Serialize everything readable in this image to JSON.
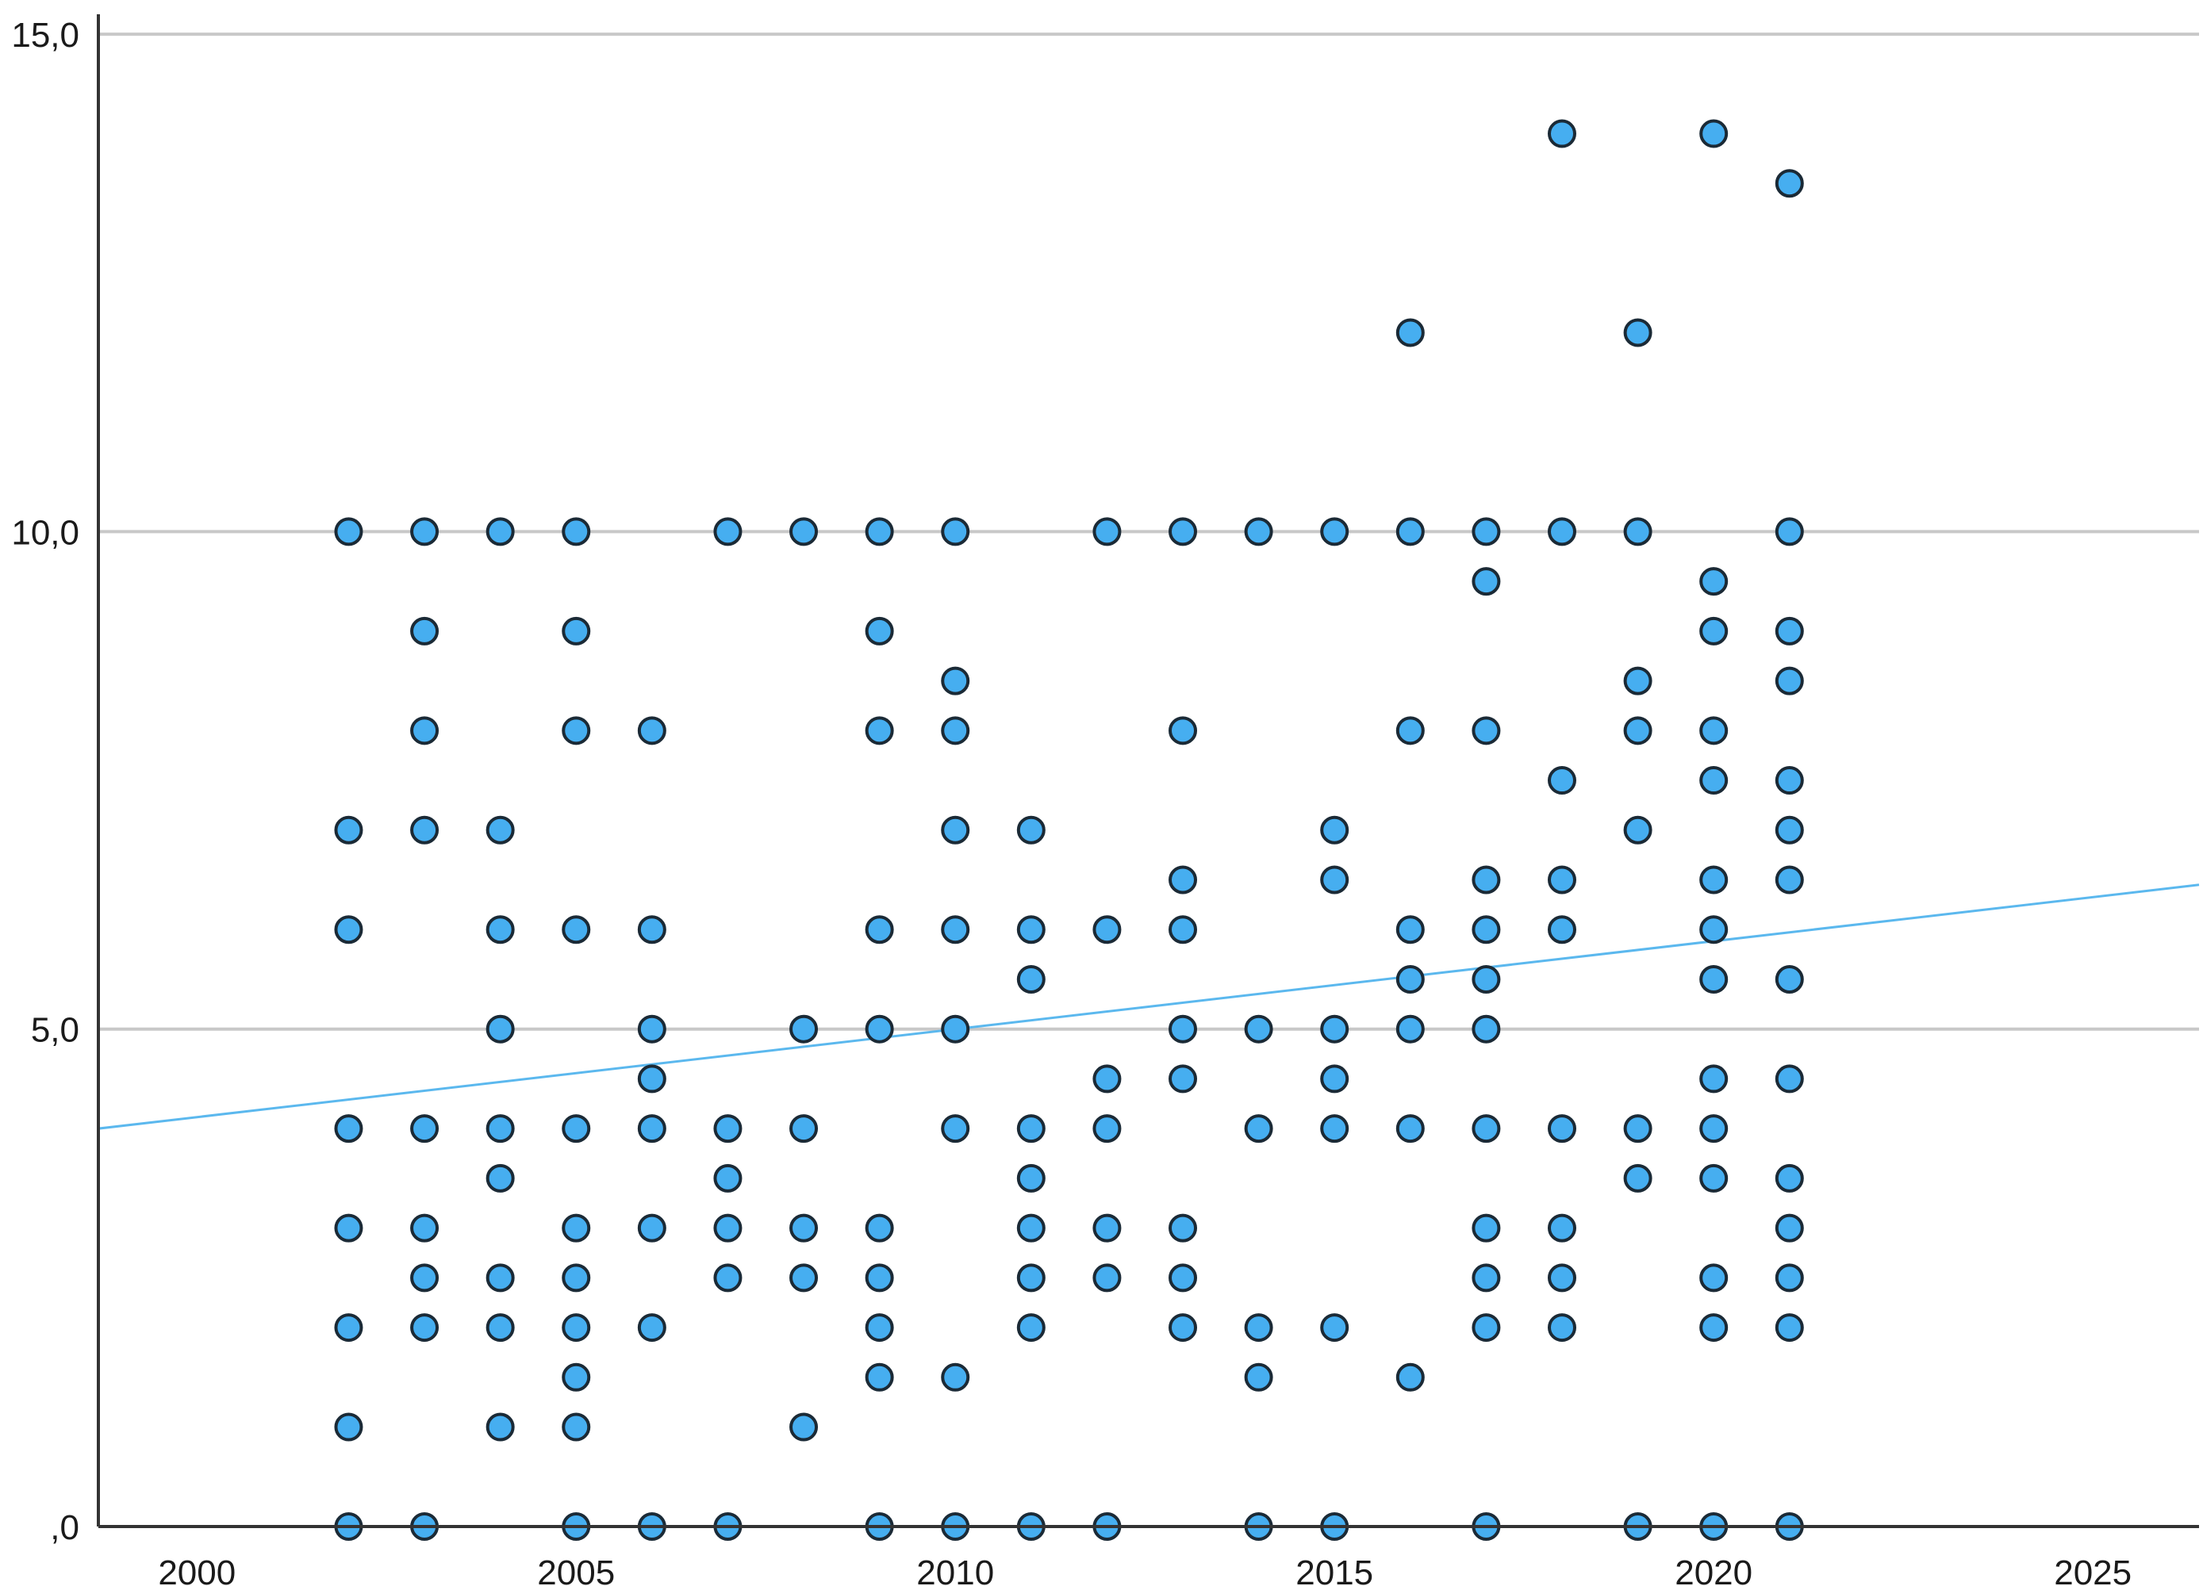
{
  "chart_data": {
    "type": "scatter",
    "title": "",
    "xlabel": "",
    "ylabel": "",
    "xlim": [
      1998.7,
      2026.4
    ],
    "ylim": [
      0,
      15.2
    ],
    "x_ticks": [
      {
        "value": 2000,
        "label": "2000"
      },
      {
        "value": 2005,
        "label": "2005"
      },
      {
        "value": 2010,
        "label": "2010"
      },
      {
        "value": 2015,
        "label": "2015"
      },
      {
        "value": 2020,
        "label": "2020"
      },
      {
        "value": 2025,
        "label": "2025"
      }
    ],
    "y_ticks": [
      {
        "value": 0,
        "label": ",0"
      },
      {
        "value": 5,
        "label": "5,0"
      },
      {
        "value": 10,
        "label": "10,0"
      },
      {
        "value": 15,
        "label": "15,0"
      }
    ],
    "grid": {
      "horizontal": true,
      "vertical": false
    },
    "marker_color": "#46aef0",
    "marker_edge_color": "#1b2a36",
    "fit_line": {
      "color": "#5bb8ee",
      "x": [
        1998.7,
        2026.4
      ],
      "y": [
        4.0,
        6.45
      ]
    },
    "points": [
      [
        2002,
        10
      ],
      [
        2002,
        7
      ],
      [
        2002,
        6
      ],
      [
        2002,
        4
      ],
      [
        2002,
        3
      ],
      [
        2002,
        2
      ],
      [
        2002,
        1
      ],
      [
        2002,
        0
      ],
      [
        2003,
        10
      ],
      [
        2003,
        9
      ],
      [
        2003,
        8
      ],
      [
        2003,
        7
      ],
      [
        2003,
        4
      ],
      [
        2003,
        3
      ],
      [
        2003,
        2.5
      ],
      [
        2003,
        2
      ],
      [
        2003,
        0
      ],
      [
        2004,
        10
      ],
      [
        2004,
        7
      ],
      [
        2004,
        6
      ],
      [
        2004,
        5
      ],
      [
        2004,
        4
      ],
      [
        2004,
        3.5
      ],
      [
        2004,
        2.5
      ],
      [
        2004,
        2
      ],
      [
        2004,
        1
      ],
      [
        2005,
        10
      ],
      [
        2005,
        9
      ],
      [
        2005,
        8
      ],
      [
        2005,
        6
      ],
      [
        2005,
        4
      ],
      [
        2005,
        3
      ],
      [
        2005,
        2.5
      ],
      [
        2005,
        2
      ],
      [
        2005,
        1.5
      ],
      [
        2005,
        1
      ],
      [
        2005,
        0
      ],
      [
        2006,
        8
      ],
      [
        2006,
        6
      ],
      [
        2006,
        5
      ],
      [
        2006,
        4.5
      ],
      [
        2006,
        4
      ],
      [
        2006,
        3
      ],
      [
        2006,
        2
      ],
      [
        2006,
        0
      ],
      [
        2007,
        10
      ],
      [
        2007,
        4
      ],
      [
        2007,
        3.5
      ],
      [
        2007,
        3
      ],
      [
        2007,
        2.5
      ],
      [
        2007,
        0
      ],
      [
        2008,
        10
      ],
      [
        2008,
        5
      ],
      [
        2008,
        4
      ],
      [
        2008,
        3
      ],
      [
        2008,
        2.5
      ],
      [
        2008,
        1
      ],
      [
        2009,
        10
      ],
      [
        2009,
        9
      ],
      [
        2009,
        8
      ],
      [
        2009,
        6
      ],
      [
        2009,
        5
      ],
      [
        2009,
        3
      ],
      [
        2009,
        2.5
      ],
      [
        2009,
        2
      ],
      [
        2009,
        1.5
      ],
      [
        2009,
        0
      ],
      [
        2010,
        10
      ],
      [
        2010,
        8.5
      ],
      [
        2010,
        8
      ],
      [
        2010,
        7
      ],
      [
        2010,
        6
      ],
      [
        2010,
        5
      ],
      [
        2010,
        4
      ],
      [
        2010,
        1.5
      ],
      [
        2010,
        0
      ],
      [
        2011,
        7
      ],
      [
        2011,
        6
      ],
      [
        2011,
        5.5
      ],
      [
        2011,
        4
      ],
      [
        2011,
        3.5
      ],
      [
        2011,
        3
      ],
      [
        2011,
        2.5
      ],
      [
        2011,
        2
      ],
      [
        2011,
        0
      ],
      [
        2012,
        10
      ],
      [
        2012,
        6
      ],
      [
        2012,
        4.5
      ],
      [
        2012,
        4
      ],
      [
        2012,
        3
      ],
      [
        2012,
        2.5
      ],
      [
        2012,
        0
      ],
      [
        2013,
        10
      ],
      [
        2013,
        8
      ],
      [
        2013,
        6.5
      ],
      [
        2013,
        6
      ],
      [
        2013,
        5
      ],
      [
        2013,
        4.5
      ],
      [
        2013,
        3
      ],
      [
        2013,
        2.5
      ],
      [
        2013,
        2
      ],
      [
        2014,
        10
      ],
      [
        2014,
        5
      ],
      [
        2014,
        4
      ],
      [
        2014,
        2
      ],
      [
        2014,
        1.5
      ],
      [
        2014,
        0
      ],
      [
        2015,
        10
      ],
      [
        2015,
        7
      ],
      [
        2015,
        6.5
      ],
      [
        2015,
        5
      ],
      [
        2015,
        4.5
      ],
      [
        2015,
        4
      ],
      [
        2015,
        2
      ],
      [
        2015,
        0
      ],
      [
        2016,
        12
      ],
      [
        2016,
        10
      ],
      [
        2016,
        8
      ],
      [
        2016,
        6
      ],
      [
        2016,
        5.5
      ],
      [
        2016,
        5
      ],
      [
        2016,
        4
      ],
      [
        2016,
        1.5
      ],
      [
        2017,
        10
      ],
      [
        2017,
        9.5
      ],
      [
        2017,
        8
      ],
      [
        2017,
        6.5
      ],
      [
        2017,
        6
      ],
      [
        2017,
        5.5
      ],
      [
        2017,
        5
      ],
      [
        2017,
        4
      ],
      [
        2017,
        3
      ],
      [
        2017,
        2.5
      ],
      [
        2017,
        2
      ],
      [
        2017,
        0
      ],
      [
        2018,
        14
      ],
      [
        2018,
        10
      ],
      [
        2018,
        7.5
      ],
      [
        2018,
        6.5
      ],
      [
        2018,
        6
      ],
      [
        2018,
        4
      ],
      [
        2018,
        3
      ],
      [
        2018,
        2.5
      ],
      [
        2018,
        2
      ],
      [
        2019,
        12
      ],
      [
        2019,
        10
      ],
      [
        2019,
        8.5
      ],
      [
        2019,
        8
      ],
      [
        2019,
        7
      ],
      [
        2019,
        4
      ],
      [
        2019,
        3.5
      ],
      [
        2019,
        0
      ],
      [
        2020,
        14
      ],
      [
        2020,
        9.5
      ],
      [
        2020,
        9
      ],
      [
        2020,
        8
      ],
      [
        2020,
        7.5
      ],
      [
        2020,
        6.5
      ],
      [
        2020,
        6
      ],
      [
        2020,
        5.5
      ],
      [
        2020,
        4.5
      ],
      [
        2020,
        4
      ],
      [
        2020,
        3.5
      ],
      [
        2020,
        2.5
      ],
      [
        2020,
        2
      ],
      [
        2020,
        0
      ],
      [
        2021,
        13.5
      ],
      [
        2021,
        10
      ],
      [
        2021,
        9
      ],
      [
        2021,
        8.5
      ],
      [
        2021,
        7.5
      ],
      [
        2021,
        7
      ],
      [
        2021,
        6.5
      ],
      [
        2021,
        5.5
      ],
      [
        2021,
        4.5
      ],
      [
        2021,
        3.5
      ],
      [
        2021,
        3
      ],
      [
        2021,
        2.5
      ],
      [
        2021,
        2
      ],
      [
        2021,
        0
      ]
    ]
  }
}
